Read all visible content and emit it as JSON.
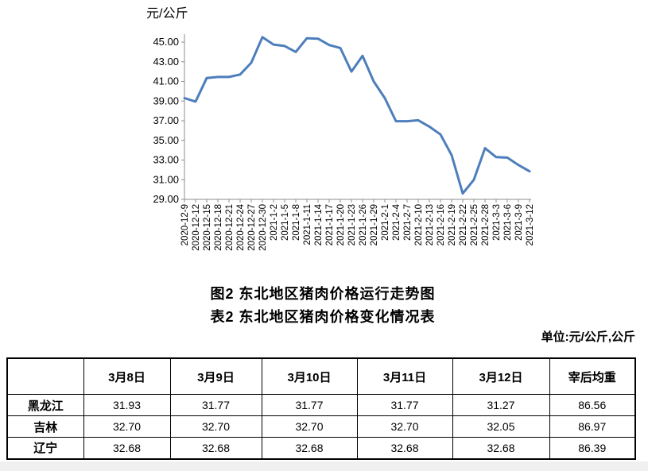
{
  "chart_data": {
    "type": "line",
    "title": "图2 东北地区猪肉价格运行走势图",
    "ylabel": "元/公斤",
    "xlabel": "",
    "grid": false,
    "legend": "none",
    "line_color": "#4D7EBB",
    "axis_color": "#8C8C8C",
    "ylim": [
      29,
      45.8
    ],
    "ytick_min": 29,
    "ytick_max": 45,
    "ytick_step": 2,
    "categories": [
      "2020-12-9",
      "2020-12-12",
      "2020-12-15",
      "2020-12-18",
      "2020-12-21",
      "2020-12-24",
      "2020-12-27",
      "2020-12-30",
      "2021-1-2",
      "2021-1-5",
      "2021-1-8",
      "2021-1-11",
      "2021-1-14",
      "2021-1-17",
      "2021-1-20",
      "2021-1-23",
      "2021-1-26",
      "2021-1-29",
      "2021-2-1",
      "2021-2-4",
      "2021-2-7",
      "2021-2-10",
      "2021-2-13",
      "2021-2-16",
      "2021-2-19",
      "2021-2-22",
      "2021-2-25",
      "2021-2-28",
      "2021-3-3",
      "2021-3-6",
      "2021-3-9",
      "2021-3-12"
    ],
    "values": [
      39.3,
      38.95,
      41.35,
      41.45,
      41.45,
      41.7,
      42.9,
      45.5,
      44.75,
      44.6,
      44.0,
      45.4,
      45.35,
      44.7,
      44.4,
      42.0,
      43.6,
      41.0,
      39.3,
      36.95,
      36.95,
      37.05,
      36.4,
      35.6,
      33.5,
      29.6,
      31.0,
      34.2,
      33.3,
      33.25,
      32.5,
      31.85
    ]
  },
  "captions": {
    "figure": "图2 东北地区猪肉价格运行走势图",
    "table": "表2 东北地区猪肉价格变化情况表",
    "unit_note": "单位:元/公斤,公斤"
  },
  "table": {
    "columns": [
      "",
      "3月8日",
      "3月9日",
      "3月10日",
      "3月11日",
      "3月12日",
      "宰后均重"
    ],
    "rows": [
      {
        "label": "黑龙江",
        "values": [
          "31.93",
          "31.77",
          "31.77",
          "31.77",
          "31.27",
          "86.56"
        ]
      },
      {
        "label": "吉林",
        "values": [
          "32.70",
          "32.70",
          "32.70",
          "32.70",
          "32.05",
          "86.97"
        ]
      },
      {
        "label": "辽宁",
        "values": [
          "32.68",
          "32.68",
          "32.68",
          "32.68",
          "32.68",
          "86.39"
        ]
      }
    ]
  }
}
